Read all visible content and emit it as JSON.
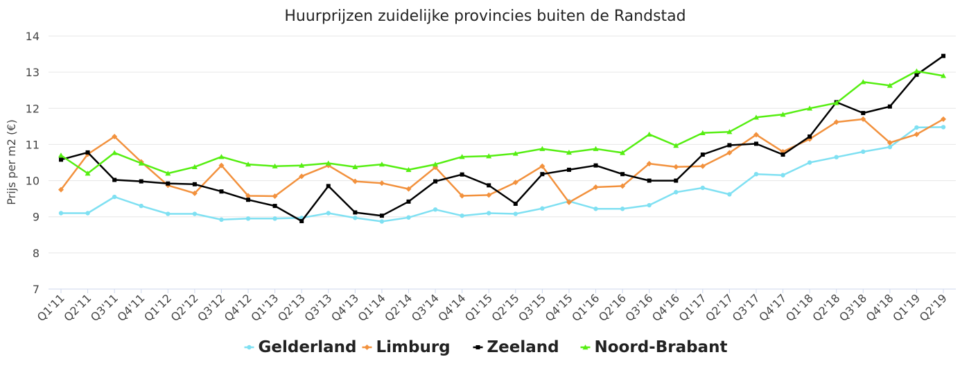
{
  "chart_data": {
    "type": "line",
    "title": "Huurprijzen zuidelijke provincies buiten de Randstad",
    "xlabel": "",
    "ylabel": "Prijs per m2 (€)",
    "ylim": [
      7,
      14
    ],
    "yticks": [
      "7",
      "8",
      "9",
      "10",
      "11",
      "12",
      "13",
      "14"
    ],
    "grid": true,
    "legend_position": "bottom",
    "categories": [
      "Q1'11",
      "Q2'11",
      "Q3'11",
      "Q4'11",
      "Q1'12",
      "Q2'12",
      "Q3'12",
      "Q4'12",
      "Q1'13",
      "Q2'13",
      "Q3'13",
      "Q4'13",
      "Q1'14",
      "Q2'14",
      "Q3'14",
      "Q4'14",
      "Q1'15",
      "Q2'15",
      "Q3'15",
      "Q4'15",
      "Q1'16",
      "Q2'16",
      "Q3'16",
      "Q4'16",
      "Q1'17",
      "Q2'17",
      "Q3'17",
      "Q4'17",
      "Q1'18",
      "Q2'18",
      "Q3'18",
      "Q4'18",
      "Q1'19",
      "Q2'19"
    ],
    "series": [
      {
        "name": "Gelderland",
        "color": "#7fe0f2",
        "marker": "circle",
        "values": [
          9.1,
          9.1,
          9.55,
          9.3,
          9.08,
          9.08,
          8.92,
          8.95,
          8.95,
          8.97,
          9.1,
          8.97,
          8.87,
          8.98,
          9.2,
          9.03,
          9.1,
          9.08,
          9.23,
          9.43,
          9.22,
          9.22,
          9.32,
          9.68,
          9.8,
          9.62,
          10.18,
          10.15,
          10.5,
          10.65,
          10.8,
          10.93,
          11.47,
          11.48
        ]
      },
      {
        "name": "Limburg",
        "color": "#f2913d",
        "marker": "diamond",
        "values": [
          9.75,
          10.73,
          11.22,
          10.52,
          9.87,
          9.65,
          10.42,
          9.58,
          9.57,
          10.12,
          10.42,
          9.98,
          9.93,
          9.77,
          10.37,
          9.58,
          9.6,
          9.95,
          10.4,
          9.4,
          9.82,
          9.85,
          10.47,
          10.38,
          10.4,
          10.77,
          11.27,
          10.8,
          11.15,
          11.62,
          11.7,
          11.05,
          11.28,
          11.7
        ]
      },
      {
        "name": "Zeeland",
        "color": "#000000",
        "marker": "square",
        "values": [
          10.58,
          10.78,
          10.02,
          9.98,
          9.92,
          9.9,
          9.7,
          9.47,
          9.3,
          8.88,
          9.85,
          9.12,
          9.03,
          9.42,
          9.98,
          10.17,
          9.87,
          9.36,
          10.18,
          10.3,
          10.42,
          10.18,
          10.0,
          10.0,
          10.72,
          10.98,
          11.02,
          10.72,
          11.22,
          12.17,
          11.87,
          12.05,
          12.93,
          13.45
        ]
      },
      {
        "name": "Noord-Brabant",
        "color": "#55ee11",
        "marker": "triangle",
        "values": [
          10.7,
          10.2,
          10.77,
          10.48,
          10.2,
          10.38,
          10.66,
          10.45,
          10.4,
          10.42,
          10.48,
          10.38,
          10.45,
          10.3,
          10.45,
          10.66,
          10.68,
          10.75,
          10.88,
          10.78,
          10.88,
          10.77,
          11.28,
          10.97,
          11.32,
          11.35,
          11.75,
          11.83,
          12.0,
          12.15,
          12.73,
          12.63,
          13.03,
          12.9
        ]
      }
    ]
  }
}
